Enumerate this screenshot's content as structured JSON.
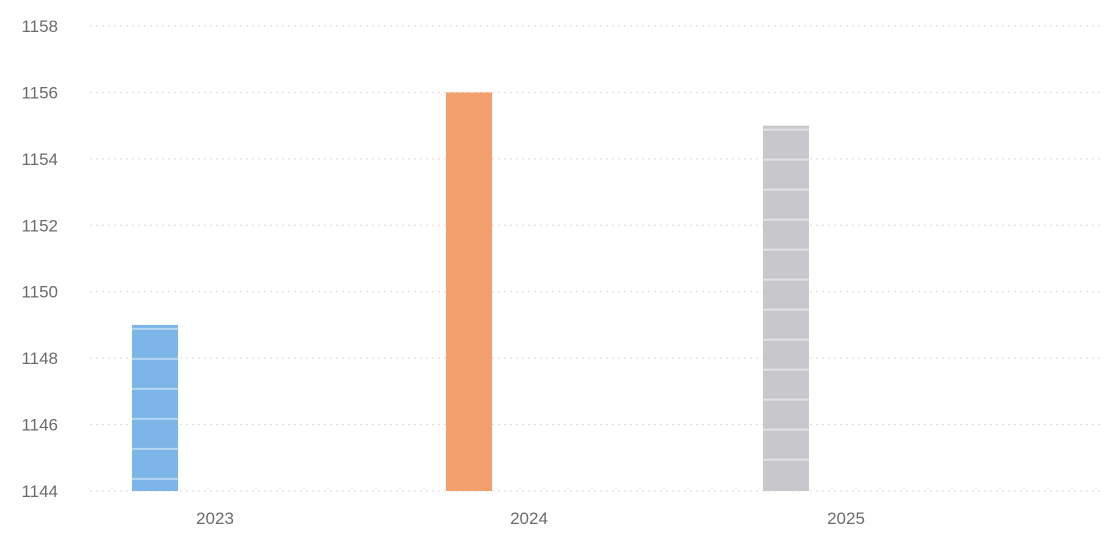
{
  "chart_data": {
    "type": "bar",
    "title": "",
    "xlabel": "",
    "ylabel": "",
    "categories": [
      "2023",
      "2024",
      "2025"
    ],
    "values": [
      1149,
      1156,
      1155
    ],
    "bar_colors": [
      "#7cb5e8",
      "#f4a06e",
      "#c8c8cc"
    ],
    "ylim": [
      1144,
      1158
    ],
    "y_ticks": [
      1144,
      1146,
      1148,
      1150,
      1152,
      1154,
      1156,
      1158
    ],
    "y_tick_labels": [
      "1144",
      "1146",
      "1148",
      "1150",
      "1152",
      "1154",
      "1156",
      "1158"
    ],
    "grid": true,
    "legend": "none"
  }
}
